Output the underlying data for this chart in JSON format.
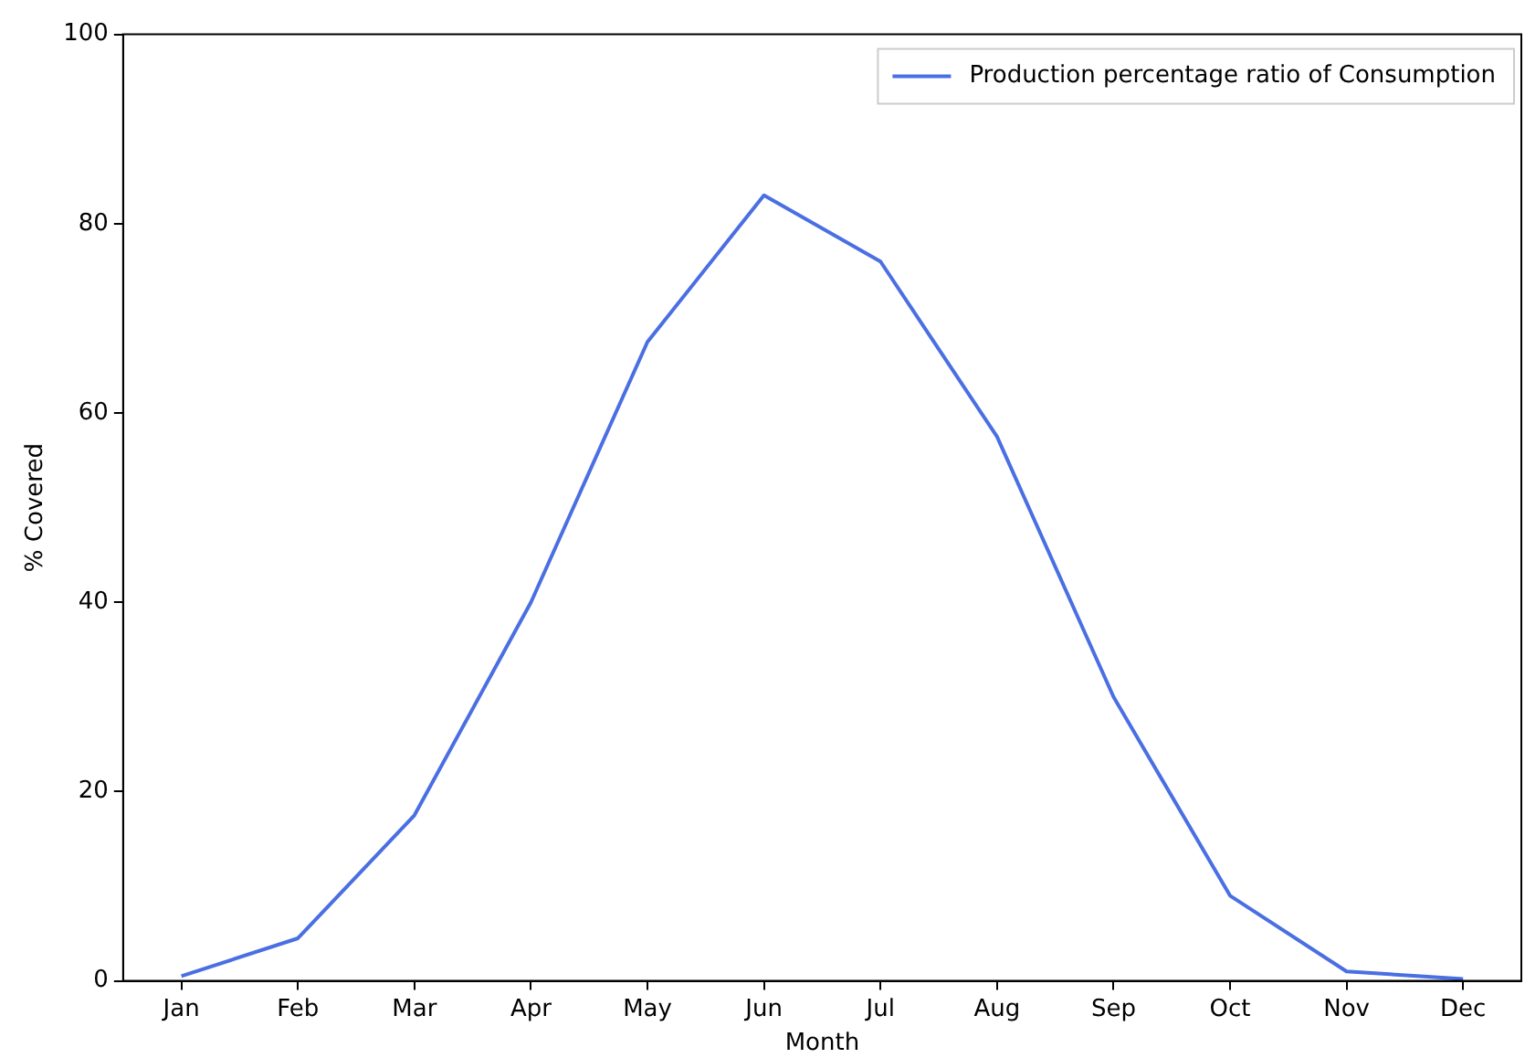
{
  "chart_data": {
    "type": "line",
    "xlabel": "Month",
    "ylabel": "% Covered",
    "categories": [
      "Jan",
      "Feb",
      "Mar",
      "Apr",
      "May",
      "Jun",
      "Jul",
      "Aug",
      "Sep",
      "Oct",
      "Nov",
      "Dec"
    ],
    "series": [
      {
        "name": "Production percentage ratio of Consumption",
        "color": "#4a6fe3",
        "values": [
          0.5,
          4.5,
          17.5,
          40,
          67.5,
          83,
          76,
          57.5,
          30,
          9,
          1,
          0.2
        ]
      }
    ],
    "ylim": [
      0,
      100
    ],
    "yticks": [
      0,
      20,
      40,
      60,
      80,
      100
    ],
    "grid": false,
    "legend": "top right",
    "marker": "none",
    "line_style": "solid"
  }
}
